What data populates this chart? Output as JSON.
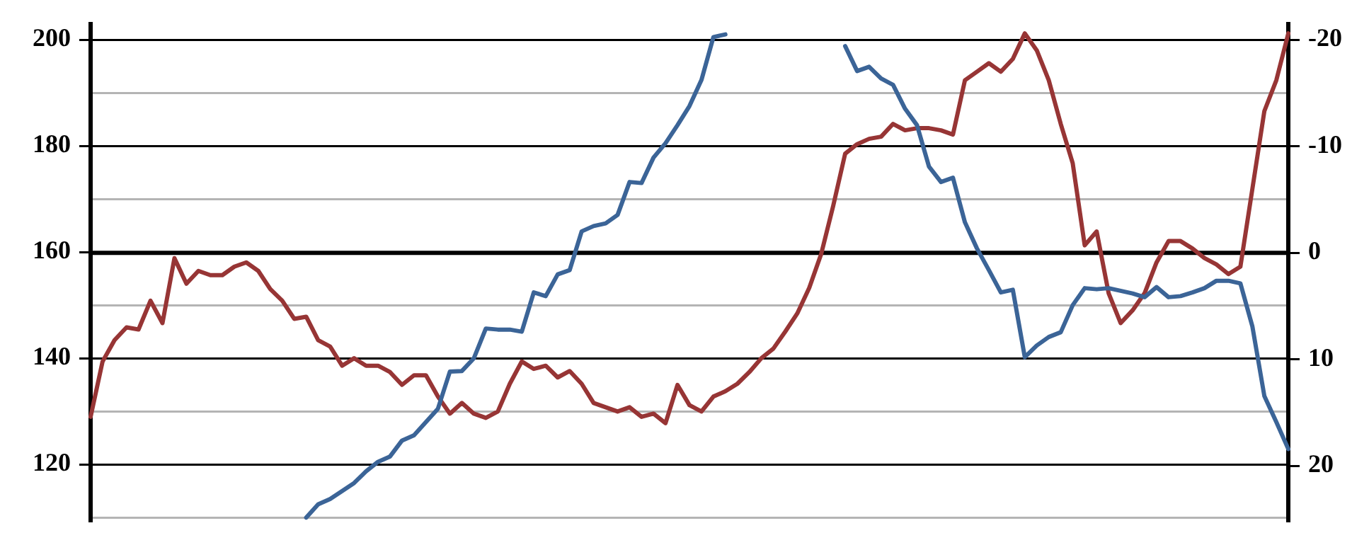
{
  "chart_data": {
    "type": "line",
    "categories": [
      null,
      null,
      null,
      null,
      null,
      null,
      null,
      null,
      null,
      null,
      null,
      null,
      null,
      null,
      null,
      null,
      null,
      null,
      null,
      null,
      null,
      null,
      null,
      null,
      null,
      null,
      null,
      null,
      null,
      null,
      null,
      null,
      null,
      null,
      null,
      null,
      null,
      null,
      null,
      null,
      null,
      null,
      null,
      null,
      null,
      null,
      null,
      null,
      null,
      null,
      null,
      null,
      null,
      null,
      null,
      null,
      null,
      null,
      null,
      null,
      null,
      null,
      null,
      null,
      null,
      null,
      null,
      null,
      null,
      null,
      null,
      null,
      null,
      null,
      null,
      null,
      null,
      null,
      null,
      null,
      null,
      null,
      null,
      null,
      null,
      null,
      null,
      null,
      null,
      null,
      null,
      null,
      null,
      null,
      null,
      null,
      null,
      null,
      null,
      null,
      null
    ],
    "series": [
      {
        "color": "#3b6497",
        "values": [
          null,
          null,
          null,
          null,
          null,
          null,
          null,
          null,
          null,
          null,
          null,
          null,
          null,
          null,
          null,
          null,
          null,
          null,
          110,
          112.5,
          113.5,
          115,
          116.5,
          118.7,
          120.5,
          121.5,
          124.5,
          125.5,
          128,
          130.5,
          137.5,
          137.6,
          140,
          145.6,
          145.4,
          145.4,
          145,
          152.4,
          151.7,
          155.8,
          156.6,
          163.9,
          164.9,
          165.4,
          167,
          173.2,
          173,
          177.8,
          180.5,
          183.9,
          187.5,
          192.4,
          200.5,
          201,
          null,
          null,
          null,
          null,
          null,
          null,
          null,
          null,
          null,
          198.8,
          194.1,
          194.9,
          192.7,
          191.5,
          187,
          183.9,
          176.1,
          173.2,
          174,
          165.6,
          160.7,
          156.6,
          152.4,
          152.9,
          140.2,
          142.4,
          144,
          144.9,
          150,
          153.2,
          153,
          153.2,
          152.7,
          152.2,
          151.5,
          153.4,
          151.5,
          151.7,
          152.4,
          153.2,
          154.6,
          154.6,
          154.1,
          146,
          132.9,
          128,
          122.9
        ]
      },
      {
        "color": "#973535",
        "axis": "y2",
        "values": [
          15.4,
          10.2,
          8.2,
          7,
          7.2,
          4.5,
          6.6,
          0.5,
          2.9,
          1.7,
          2.1,
          2.1,
          1.3,
          0.9,
          1.7,
          3.4,
          4.5,
          6.2,
          6,
          8.2,
          8.8,
          10.6,
          9.9,
          10.6,
          10.6,
          11.2,
          12.4,
          11.5,
          11.5,
          13.5,
          15.1,
          14.1,
          15.1,
          15.5,
          14.9,
          12.3,
          10.2,
          10.9,
          10.6,
          11.7,
          11.1,
          12.3,
          14.1,
          14.5,
          14.9,
          14.5,
          15.4,
          15.1,
          16,
          12.4,
          14.3,
          14.9,
          13.5,
          13,
          12.3,
          11.2,
          9.9,
          9,
          7.4,
          5.7,
          3.3,
          0.1,
          -4.4,
          -9.3,
          -10.2,
          -10.7,
          -10.9,
          -12.1,
          -11.5,
          -11.7,
          -11.7,
          -11.5,
          -11.1,
          -16.2,
          -17,
          -17.8,
          -17,
          -18.2,
          -20.6,
          -19,
          -16.2,
          -12.1,
          -8.4,
          -0.7,
          -2,
          3.8,
          6.6,
          5.4,
          3.8,
          0.9,
          -1.1,
          -1.1,
          -0.4,
          0.5,
          1.1,
          2,
          1.3,
          -6,
          -13.3,
          -16.2,
          -20.6
        ]
      }
    ],
    "ylim": [
      109.3,
      203
    ],
    "yticks": [
      {
        "value": 110,
        "label": null
      },
      120,
      {
        "value": 130,
        "label": null
      },
      140,
      {
        "value": 150,
        "label": null
      },
      160,
      {
        "value": 170,
        "label": null
      },
      180,
      {
        "value": 190,
        "label": null
      },
      200
    ],
    "y2lim": [
      25.2,
      -21.5
    ],
    "y2ticks": [
      20,
      10,
      0,
      -10,
      -20
    ],
    "ref_lines": [
      {
        "axis": "y2",
        "value": 0
      }
    ],
    "grid": "y",
    "tick_labels": "y",
    "line_style": "solid",
    "marker": "none"
  }
}
